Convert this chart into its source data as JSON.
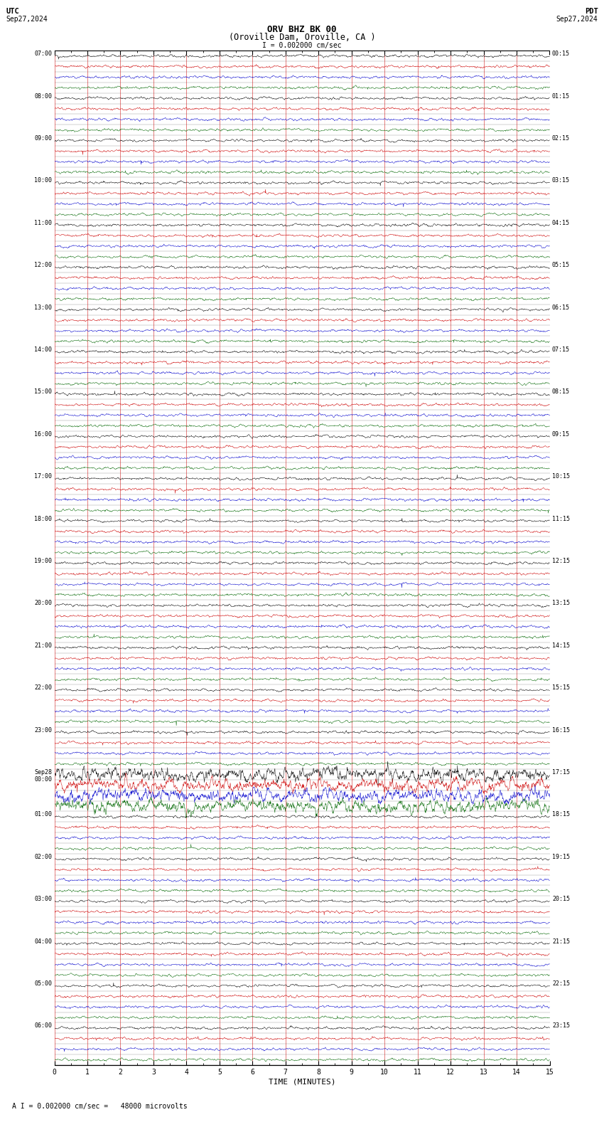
{
  "title_line1": "ORV BHZ BK 00",
  "title_line2": "(Oroville Dam, Oroville, CA )",
  "scale_label": "I = 0.002000 cm/sec",
  "utc_label": "UTC",
  "utc_date": "Sep27,2024",
  "pdt_label": "PDT",
  "pdt_date": "Sep27,2024",
  "xlabel": "TIME (MINUTES)",
  "bottom_label": "A I = 0.002000 cm/sec =   48000 microvolts",
  "xlim": [
    0,
    15
  ],
  "xticks": [
    0,
    1,
    2,
    3,
    4,
    5,
    6,
    7,
    8,
    9,
    10,
    11,
    12,
    13,
    14,
    15
  ],
  "n_rows": 96,
  "bg_color": "#ffffff",
  "noise_seed": 42,
  "trace_lw": 0.35,
  "colors_cycle": [
    "#000000",
    "#cc0000",
    "#0000cc",
    "#006600"
  ],
  "row_labels_utc": [
    "07:00",
    "08:00",
    "09:00",
    "10:00",
    "11:00",
    "12:00",
    "13:00",
    "14:00",
    "15:00",
    "16:00",
    "17:00",
    "18:00",
    "19:00",
    "20:00",
    "21:00",
    "22:00",
    "23:00",
    "Sep28\n00:00",
    "01:00",
    "02:00",
    "03:00",
    "04:00",
    "05:00",
    "06:00"
  ],
  "row_labels_pdt": [
    "00:15",
    "01:15",
    "02:15",
    "03:15",
    "04:15",
    "05:15",
    "06:15",
    "07:15",
    "08:15",
    "09:15",
    "10:15",
    "11:15",
    "12:15",
    "13:15",
    "14:15",
    "15:15",
    "16:15",
    "17:15",
    "18:15",
    "19:15",
    "20:15",
    "21:15",
    "22:15",
    "23:15"
  ]
}
